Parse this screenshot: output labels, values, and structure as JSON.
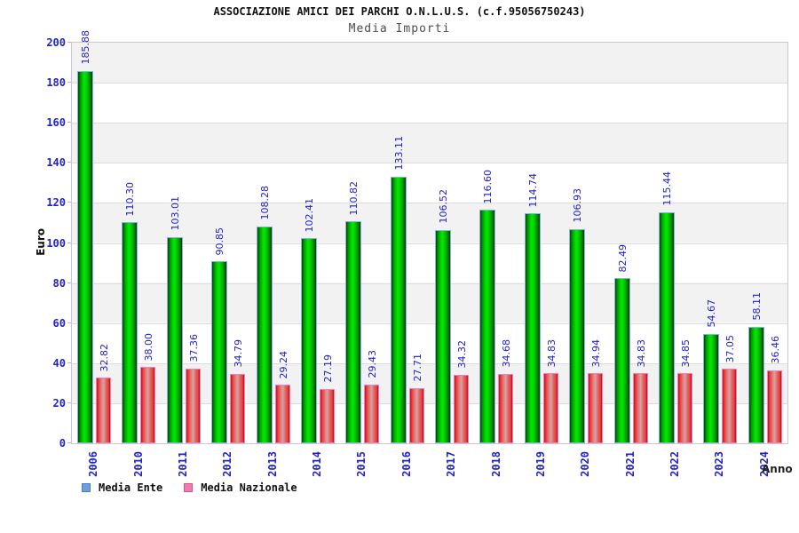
{
  "chart_data": {
    "type": "bar",
    "title": "ASSOCIAZIONE AMICI DEI PARCHI O.N.L.U.S. (c.f.95056750243)",
    "subtitle": "Media Importi",
    "xlabel": "Anno",
    "ylabel": "Euro",
    "ylim": [
      0,
      200
    ],
    "ytick_step": 20,
    "yticks": [
      0,
      20,
      40,
      60,
      80,
      100,
      120,
      140,
      160,
      180,
      200
    ],
    "grid": true,
    "background_bands": true,
    "value_labels": true,
    "value_label_rotation": 90,
    "legend_position": "bottom-left",
    "categories": [
      "2006",
      "2010",
      "2011",
      "2012",
      "2013",
      "2014",
      "2015",
      "2016",
      "2017",
      "2018",
      "2019",
      "2020",
      "2021",
      "2022",
      "2023",
      "2024"
    ],
    "series": [
      {
        "name": "Media Ente",
        "bar_color": "#00dd00",
        "bar_border_color": "#8ab0e6",
        "legend_swatch_color": "#6f9fd8",
        "legend_swatch_border": "#4a7cc0",
        "values": [
          185.88,
          110.3,
          103.01,
          90.85,
          108.28,
          102.41,
          110.82,
          133.11,
          106.52,
          116.6,
          114.74,
          106.93,
          82.49,
          115.44,
          54.67,
          58.11
        ]
      },
      {
        "name": "Media Nazionale",
        "bar_color": "#ee3b3b",
        "bar_border_color": "#f07ec2",
        "legend_swatch_color": "#ef7bb0",
        "legend_swatch_border": "#d0558e",
        "values": [
          32.82,
          38.0,
          37.36,
          34.79,
          29.24,
          27.19,
          29.43,
          27.71,
          34.32,
          34.68,
          34.83,
          34.94,
          34.83,
          34.85,
          37.05,
          36.46
        ]
      }
    ],
    "colors": {
      "tick_label": "#2222cc",
      "value_label": "#2222cc",
      "title": "#111111",
      "subtitle": "#4d4d4d",
      "band_gray": "#f2f2f2",
      "gridline": "#dcdcdc",
      "plot_border": "#c9c9c9"
    }
  }
}
